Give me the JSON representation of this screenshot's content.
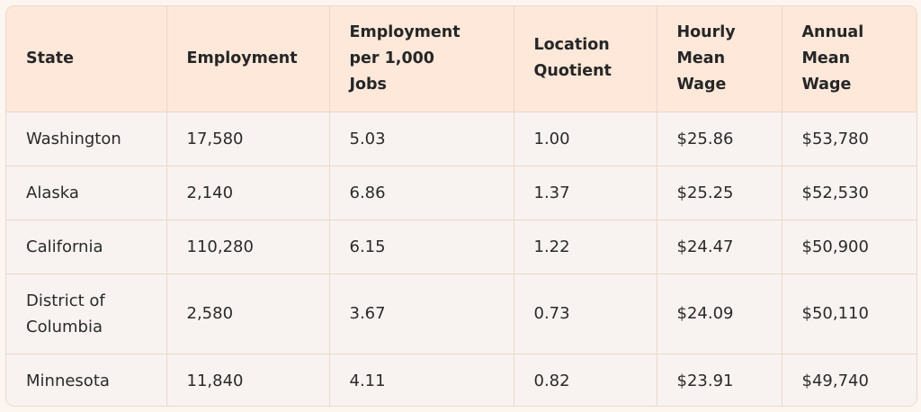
{
  "table": {
    "headers": [
      "State",
      "Employment",
      "Employment per 1,000 Jobs",
      "Location Quotient",
      "Hourly Mean Wage",
      "Annual Mean Wage"
    ],
    "rows": [
      [
        "Washington",
        "17,580",
        "5.03",
        "1.00",
        "$25.86",
        "$53,780"
      ],
      [
        "Alaska",
        "2,140",
        "6.86",
        "1.37",
        "$25.25",
        "$52,530"
      ],
      [
        "California",
        "110,280",
        "6.15",
        "1.22",
        "$24.47",
        "$50,900"
      ],
      [
        "District of Columbia",
        "2,580",
        "3.67",
        "0.73",
        "$24.09",
        "$50,110"
      ],
      [
        "Minnesota",
        "11,840",
        "4.11",
        "0.82",
        "$23.91",
        "$49,740"
      ]
    ]
  }
}
